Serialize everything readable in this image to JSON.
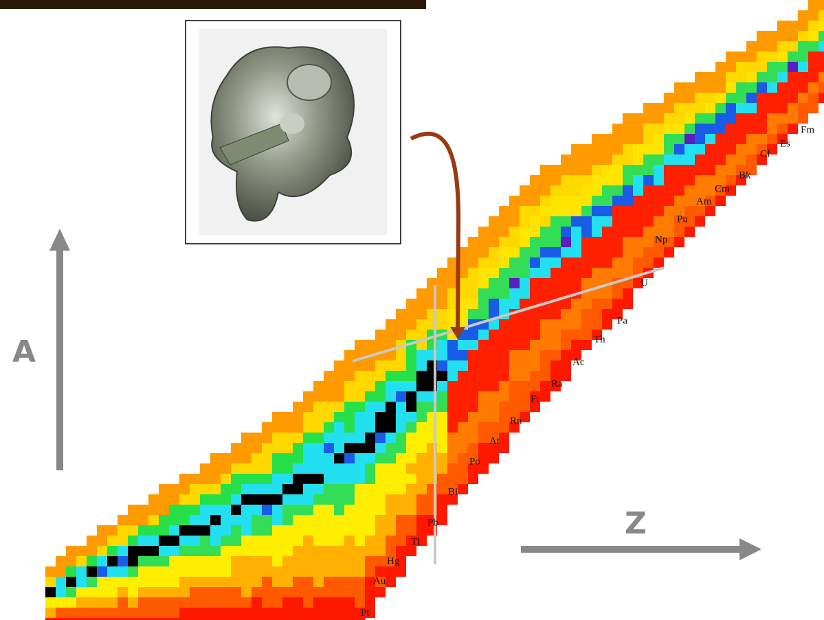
{
  "axes": {
    "vertical": "A",
    "horizontal": "Z"
  },
  "elements": [
    "Pt",
    "Au",
    "Hg",
    "Tl",
    "Pb",
    "Bi",
    "Po",
    "At",
    "Rn",
    "Fr",
    "Ra",
    "Ac",
    "Th",
    "Pa",
    "U",
    "Np",
    "Pu",
    "Am",
    "Cm",
    "Bk",
    "Cf",
    "Es",
    "Fm"
  ]
}
